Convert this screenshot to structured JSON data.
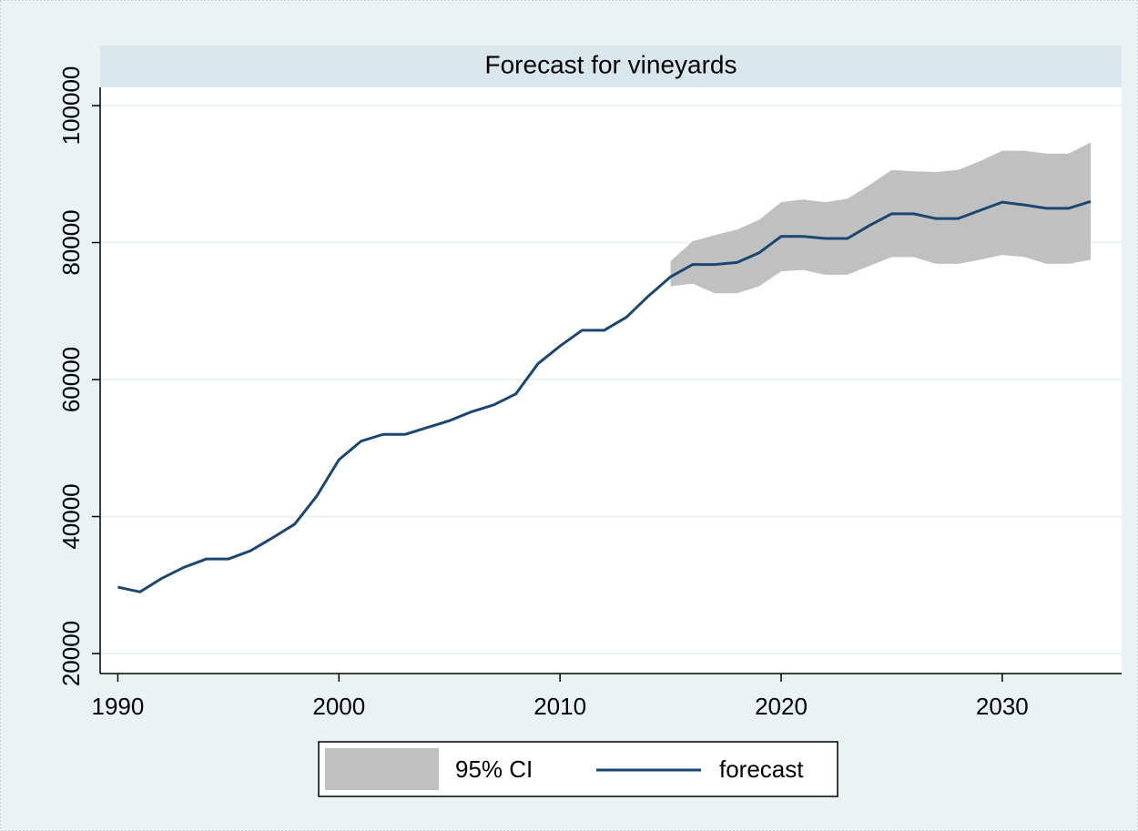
{
  "chart_data": {
    "type": "line",
    "title": "Forecast for vineyards",
    "x": [
      1990,
      1991,
      1992,
      1993,
      1994,
      1995,
      1996,
      1997,
      1998,
      1999,
      2000,
      2001,
      2002,
      2003,
      2004,
      2005,
      2006,
      2007,
      2008,
      2009,
      2010,
      2011,
      2012,
      2013,
      2014,
      2015,
      2016,
      2017,
      2018,
      2019,
      2020,
      2021,
      2022,
      2023,
      2024,
      2025,
      2026,
      2027,
      2028,
      2029,
      2030,
      2031,
      2032,
      2033,
      2034
    ],
    "xlim": [
      1989.2,
      2035.4
    ],
    "xticks": [
      1990,
      2000,
      2010,
      2020,
      2030
    ],
    "ylim": [
      17080,
      102660
    ],
    "yticks": [
      20000,
      40000,
      60000,
      80000,
      100000
    ],
    "grid": true,
    "legend": "bottom",
    "series": [
      {
        "name": "95% CI",
        "color": "#c0c0c0",
        "lower": [
          null,
          null,
          null,
          null,
          null,
          null,
          null,
          null,
          null,
          null,
          null,
          null,
          null,
          null,
          null,
          null,
          null,
          null,
          null,
          null,
          null,
          null,
          null,
          null,
          null,
          73600,
          74000,
          72600,
          72600,
          73600,
          75800,
          76000,
          75300,
          75300,
          76600,
          77900,
          77900,
          76900,
          76900,
          77500,
          78200,
          77900,
          76900,
          76900,
          77500
        ],
        "upper": [
          null,
          null,
          null,
          null,
          null,
          null,
          null,
          null,
          null,
          null,
          null,
          null,
          null,
          null,
          null,
          null,
          null,
          null,
          null,
          null,
          null,
          null,
          null,
          null,
          null,
          77300,
          80200,
          81100,
          81900,
          83300,
          85900,
          86300,
          85900,
          86400,
          88400,
          90600,
          90400,
          90300,
          90600,
          91900,
          93400,
          93400,
          93000,
          93000,
          94600
        ]
      },
      {
        "name": "forecast",
        "color": "#1a476f",
        "values": [
          29700,
          29000,
          31000,
          32600,
          33800,
          33800,
          35000,
          36900,
          38900,
          43000,
          48300,
          51000,
          52000,
          52000,
          53000,
          54000,
          55300,
          56300,
          57900,
          62300,
          64900,
          67200,
          67200,
          69100,
          72200,
          75000,
          76800,
          76800,
          77100,
          78500,
          80900,
          80900,
          80600,
          80600,
          82500,
          84200,
          84200,
          83500,
          83500,
          84700,
          85900,
          85500,
          85000,
          85000,
          86000
        ]
      }
    ]
  }
}
